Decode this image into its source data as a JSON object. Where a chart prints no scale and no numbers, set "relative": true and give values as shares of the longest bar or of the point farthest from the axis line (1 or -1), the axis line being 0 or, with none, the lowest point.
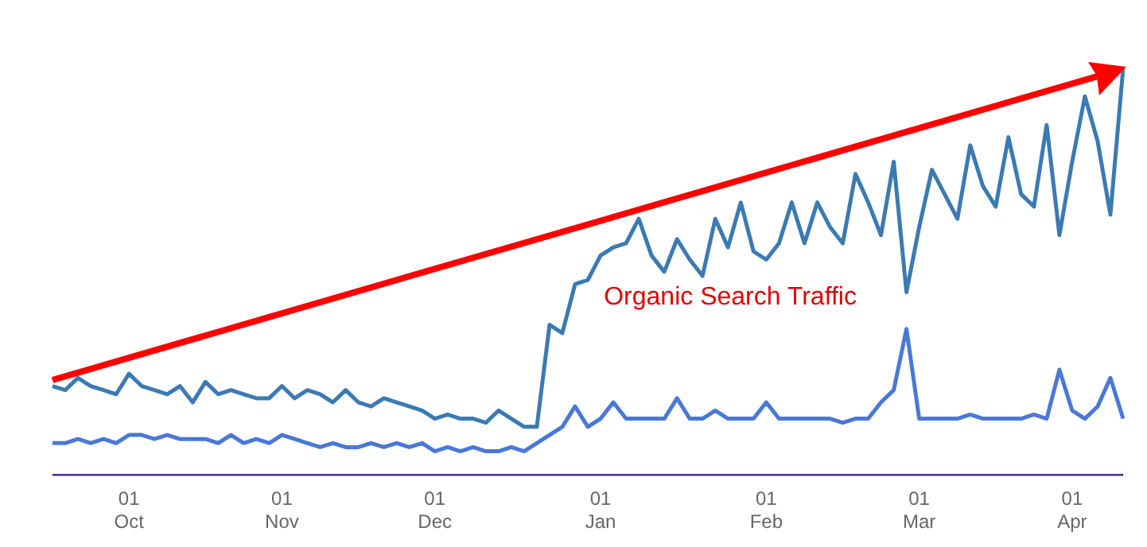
{
  "chart_data": {
    "type": "line",
    "relative": true,
    "legend": false,
    "tick_labels": "x",
    "marker": "none",
    "line_style": "solid",
    "annotations": [
      "Organic Search Traffic"
    ],
    "categories": [
      null,
      null,
      null,
      null,
      null,
      null,
      "01 Oct",
      null,
      null,
      null,
      null,
      null,
      null,
      null,
      null,
      null,
      null,
      null,
      "01 Nov",
      null,
      null,
      null,
      null,
      null,
      null,
      null,
      null,
      null,
      null,
      null,
      "01 Dec",
      null,
      null,
      null,
      null,
      null,
      null,
      null,
      null,
      null,
      null,
      null,
      null,
      "01 Jan",
      null,
      null,
      null,
      null,
      null,
      null,
      null,
      null,
      null,
      null,
      null,
      null,
      "01 Feb",
      null,
      null,
      null,
      null,
      null,
      null,
      null,
      null,
      null,
      null,
      null,
      "01 Mar",
      null,
      null,
      null,
      null,
      null,
      null,
      null,
      null,
      null,
      null,
      null,
      "01 Apr",
      null,
      null,
      null,
      null
    ],
    "series": [
      {
        "color": "#3b7ab3",
        "values": [
          0.22,
          0.21,
          0.24,
          0.22,
          0.21,
          0.2,
          0.25,
          0.22,
          0.21,
          0.2,
          0.22,
          0.18,
          0.23,
          0.2,
          0.21,
          0.2,
          0.19,
          0.19,
          0.22,
          0.19,
          0.21,
          0.2,
          0.18,
          0.21,
          0.18,
          0.17,
          0.19,
          0.18,
          0.17,
          0.16,
          0.14,
          0.15,
          0.14,
          0.14,
          0.13,
          0.16,
          0.14,
          0.12,
          0.12,
          0.37,
          0.35,
          0.47,
          0.48,
          0.54,
          0.56,
          0.57,
          0.63,
          0.54,
          0.5,
          0.58,
          0.53,
          0.49,
          0.63,
          0.56,
          0.67,
          0.55,
          0.53,
          0.57,
          0.67,
          0.57,
          0.67,
          0.61,
          0.57,
          0.74,
          0.67,
          0.59,
          0.77,
          0.45,
          0.61,
          0.75,
          0.69,
          0.63,
          0.81,
          0.71,
          0.66,
          0.83,
          0.69,
          0.66,
          0.86,
          0.59,
          0.77,
          0.93,
          0.82,
          0.64,
          1
        ]
      },
      {
        "color": "#4a78d8",
        "values": [
          0.08,
          0.08,
          0.09,
          0.08,
          0.09,
          0.08,
          0.1,
          0.1,
          0.09,
          0.1,
          0.09,
          0.09,
          0.09,
          0.08,
          0.1,
          0.08,
          0.09,
          0.08,
          0.1,
          0.09,
          0.08,
          0.07,
          0.08,
          0.07,
          0.07,
          0.08,
          0.07,
          0.08,
          0.07,
          0.08,
          0.06,
          0.07,
          0.06,
          0.07,
          0.06,
          0.06,
          0.07,
          0.06,
          0.08,
          0.1,
          0.12,
          0.17,
          0.12,
          0.14,
          0.18,
          0.14,
          0.14,
          0.14,
          0.14,
          0.19,
          0.14,
          0.14,
          0.16,
          0.14,
          0.14,
          0.14,
          0.18,
          0.14,
          0.14,
          0.14,
          0.14,
          0.14,
          0.13,
          0.14,
          0.14,
          0.18,
          0.21,
          0.36,
          0.14,
          0.14,
          0.14,
          0.14,
          0.15,
          0.14,
          0.14,
          0.14,
          0.14,
          0.15,
          0.14,
          0.26,
          0.16,
          0.14,
          0.17,
          0.24,
          0.14
        ]
      },
      {
        "color": "#5a2d9c",
        "values": [
          0,
          0,
          0,
          0,
          0,
          0,
          0,
          0,
          0,
          0,
          0,
          0,
          0,
          0,
          0,
          0,
          0,
          0,
          0,
          0,
          0,
          0,
          0,
          0,
          0,
          0,
          0,
          0,
          0,
          0,
          0,
          0,
          0,
          0,
          0,
          0,
          0,
          0,
          0,
          0,
          0,
          0,
          0,
          0,
          0,
          0,
          0,
          0,
          0,
          0,
          0,
          0,
          0,
          0,
          0,
          0,
          0,
          0,
          0,
          0,
          0,
          0,
          0,
          0,
          0,
          0,
          0,
          0,
          0,
          0,
          0,
          0,
          0,
          0,
          0,
          0,
          0,
          0,
          0,
          0,
          0,
          0,
          0,
          0,
          0
        ]
      }
    ]
  }
}
